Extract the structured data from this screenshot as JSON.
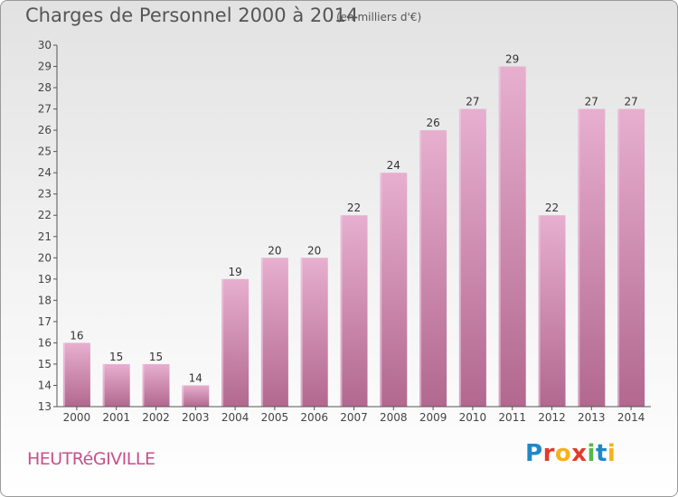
{
  "header": {
    "title": "Charges de Personnel 2000 à 2014",
    "subtitle": "(en milliers d'€)"
  },
  "footer": {
    "place": "HEUTRéGIVILLE",
    "logo_letters": [
      "P",
      "r",
      "o",
      "x",
      "i",
      "t",
      "i"
    ],
    "logo_colors": [
      "#1f88c8",
      "#e23a2b",
      "#f5b21c",
      "#e23a2b",
      "#56b947",
      "#1f88c8",
      "#f5b21c"
    ]
  },
  "chart_data": {
    "type": "bar",
    "title": "Charges de Personnel 2000 à 2014",
    "subtitle": "(en milliers d'€)",
    "categories": [
      "2000",
      "2001",
      "2002",
      "2003",
      "2004",
      "2005",
      "2006",
      "2007",
      "2008",
      "2009",
      "2010",
      "2011",
      "2012",
      "2013",
      "2014"
    ],
    "values": [
      16,
      15,
      15,
      14,
      19,
      20,
      20,
      22,
      24,
      26,
      27,
      29,
      22,
      27,
      27
    ],
    "ylim": [
      13,
      30
    ],
    "yticks": [
      13,
      14,
      15,
      16,
      17,
      18,
      19,
      20,
      21,
      22,
      23,
      24,
      25,
      26,
      27,
      28,
      29,
      30
    ],
    "grid": false,
    "bar_color": "#d98ab5",
    "bar_color_light": "#e7afcf",
    "bar_color_dark": "#b2688f"
  }
}
